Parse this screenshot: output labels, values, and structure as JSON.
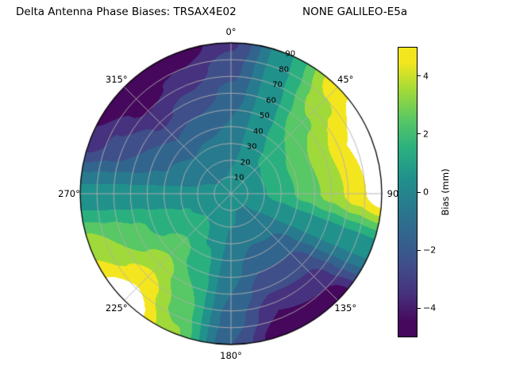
{
  "title_left": "Delta Antenna Phase Biases: TRSAX4E02",
  "title_right": "NONE GALILEO-E5a",
  "chart_data": {
    "type": "heatmap",
    "projection": "polar",
    "title": "Delta Antenna Phase Biases: TRSAX4E02      NONE GALILEO-E5a",
    "azimuth_labels": [
      "0°",
      "45°",
      "90",
      "135°",
      "180°",
      "225°",
      "270°",
      "315°"
    ],
    "azimuth_label_angles_deg": [
      0,
      45,
      90,
      135,
      180,
      225,
      270,
      315
    ],
    "radial_tick_labels": [
      "10",
      "20",
      "30",
      "40",
      "50",
      "60",
      "70",
      "80",
      "90"
    ],
    "radial_tick_values": [
      10,
      20,
      30,
      40,
      50,
      60,
      70,
      80,
      90
    ],
    "radial_axis_range": [
      0,
      90
    ],
    "radial_label_angle_deg": 22.5,
    "azimuth_deg": [
      0,
      22.5,
      45,
      67.5,
      90,
      112.5,
      135,
      157.5,
      180,
      202.5,
      225,
      247.5,
      270,
      292.5,
      315,
      337.5,
      360
    ],
    "radial_values": [
      0,
      15,
      30,
      45,
      60,
      75,
      90
    ],
    "values_mm": [
      [
        0.3,
        0.3,
        0.3,
        0.3,
        0.3,
        0.3,
        0.3,
        0.3,
        0.3,
        0.3,
        0.3,
        0.3,
        0.3,
        0.3,
        0.3,
        0.3,
        0.3
      ],
      [
        0.0,
        0.3,
        0.7,
        0.8,
        0.7,
        0.3,
        -0.1,
        -0.1,
        0.1,
        0.5,
        0.8,
        0.6,
        0.3,
        0.0,
        -0.2,
        -0.1,
        0.0
      ],
      [
        -0.5,
        0.4,
        1.2,
        1.6,
        1.5,
        0.3,
        -0.8,
        -0.9,
        -0.2,
        0.9,
        1.6,
        1.1,
        0.3,
        -0.6,
        -1.0,
        -0.8,
        -0.5
      ],
      [
        -1.0,
        0.5,
        2.0,
        2.6,
        2.4,
        0.3,
        -1.7,
        -1.8,
        -0.6,
        1.4,
        2.5,
        1.6,
        0.3,
        -1.2,
        -2.0,
        -1.7,
        -1.0
      ],
      [
        -1.7,
        0.6,
        2.8,
        3.8,
        3.4,
        0.3,
        -2.7,
        -2.8,
        -1.0,
        2.0,
        3.6,
        2.3,
        0.3,
        -2.0,
        -3.2,
        -2.7,
        -1.7
      ],
      [
        -2.4,
        0.8,
        3.7,
        5.0,
        4.6,
        0.3,
        -3.7,
        -4.0,
        -1.5,
        2.5,
        4.8,
        3.0,
        0.3,
        -2.8,
        -4.4,
        -3.7,
        -2.4
      ],
      [
        -3.2,
        0.9,
        4.7,
        6.4,
        5.8,
        0.3,
        -4.9,
        -5.2,
        -2.0,
        3.2,
        6.1,
        3.8,
        0.3,
        -3.8,
        -5.8,
        -4.9,
        -3.2
      ]
    ],
    "levels": [
      -5,
      -4,
      -3,
      -2,
      -1,
      0,
      1,
      2,
      3,
      4,
      5
    ],
    "band_colors": [
      "#46085c",
      "#46327e",
      "#3f4f8a",
      "#32658e",
      "#287a8e",
      "#21918c",
      "#2ab07f",
      "#58c765",
      "#9fda3a",
      "#f4e61e"
    ],
    "over_color": "#ffffff",
    "grid_color": "#b0b0b0",
    "outline_color": "#000000",
    "colorbar": {
      "label": "Bias (mm)",
      "range": [
        -5,
        5
      ],
      "tick_values": [
        4,
        2,
        0,
        -2,
        -4
      ],
      "tick_labels": [
        "4",
        "2",
        "0",
        "−2",
        "−4"
      ]
    }
  }
}
